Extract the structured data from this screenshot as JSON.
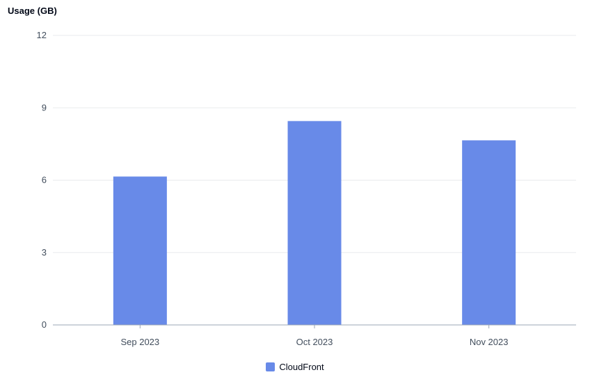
{
  "chart_data": {
    "type": "bar",
    "ylabel": "Usage (GB)",
    "categories": [
      "Sep 2023",
      "Oct 2023",
      "Nov 2023"
    ],
    "series": [
      {
        "name": "CloudFront",
        "values": [
          6.15,
          8.45,
          7.65
        ],
        "color": "#688ae8"
      }
    ],
    "ylim": [
      0,
      12
    ],
    "yticks": [
      0,
      3,
      6,
      9,
      12
    ],
    "grid": true,
    "legend_position": "bottom-center"
  }
}
